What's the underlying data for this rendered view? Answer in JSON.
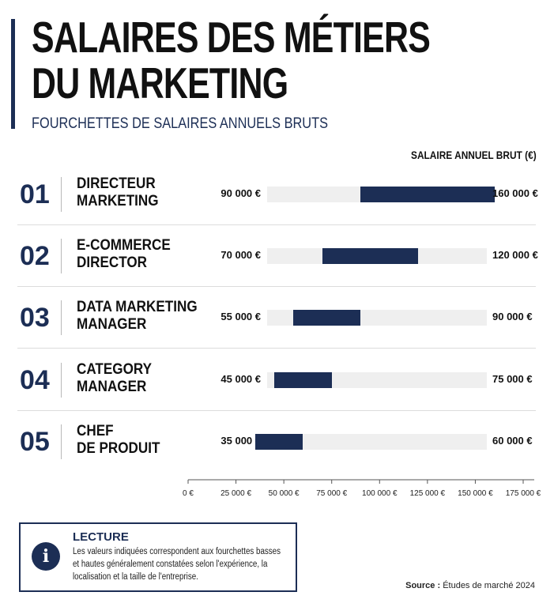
{
  "header": {
    "title_lines": [
      "SALAIRES DES MÉTIERS",
      "DU MARKETING"
    ],
    "subtitle": "FOURCHETTES DE SALAIRES ANNUELS BRUTS",
    "unit_label": "SALAIRE ANNUEL BRUT (€)"
  },
  "rows": [
    {
      "num": "01",
      "label_lines": [
        "DIRECTEUR",
        "MARKETING"
      ],
      "min_label": "90 000 €",
      "max_label": "160 000 €"
    },
    {
      "num": "02",
      "label_lines": [
        "E-COMMERCE",
        "DIRECTOR"
      ],
      "min_label": "70 000 €",
      "max_label": "120 000 €"
    },
    {
      "num": "03",
      "label_lines": [
        "DATA MARKETING",
        "MANAGER"
      ],
      "min_label": "55 000 €",
      "max_label": "90 000 €"
    },
    {
      "num": "04",
      "label_lines": [
        "CATEGORY",
        "MANAGER"
      ],
      "min_label": "45 000 €",
      "max_label": "75 000 €"
    },
    {
      "num": "05",
      "label_lines": [
        "CHEF",
        "DE PRODUIT"
      ],
      "min_label": "35 000 €",
      "max_label": "60 000 €"
    }
  ],
  "chart_data": {
    "type": "bar",
    "orientation": "horizontal-range",
    "categories": [
      "DIRECTEUR MARKETING",
      "E-COMMERCE DIRECTOR",
      "DATA MARKETING MANAGER",
      "CATEGORY MANAGER",
      "CHEF DE PRODUIT"
    ],
    "series": [
      {
        "values_min": [
          90000,
          70000,
          55000,
          45000,
          35000
        ],
        "values_max": [
          160000,
          120000,
          90000,
          75000,
          60000
        ]
      }
    ],
    "xlim": [
      0,
      175000
    ],
    "x_ticks": [
      0,
      25000,
      50000,
      75000,
      100000,
      125000,
      150000,
      175000
    ],
    "x_tick_labels": [
      "0 €",
      "25 000 €",
      "50 000 €",
      "75 000 €",
      "100 000 €",
      "125 000 €",
      "150 000 €",
      "175 000 €"
    ],
    "grid": false
  },
  "note": {
    "title": "LECTURE",
    "icon": "info-icon",
    "text": "Les valeurs indiquées correspondent aux fourchettes basses et hautes généralement constatées selon l'expérience, la localisation et la taille de l'entreprise."
  },
  "source": {
    "label": "Source :",
    "text": "Études de marché 2024"
  },
  "colors": {
    "accent": "#1c2e55",
    "track": "#efefef",
    "divider": "#dcdcdc"
  }
}
